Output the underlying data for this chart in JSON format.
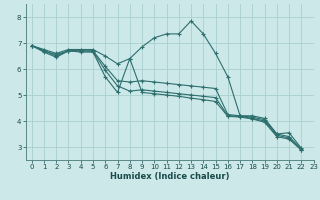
{
  "xlabel": "Humidex (Indice chaleur)",
  "bg_color": "#cce8e8",
  "grid_color": "#aacfcf",
  "line_color": "#2d6e6e",
  "xlim": [
    -0.5,
    23
  ],
  "ylim": [
    2.5,
    8.5
  ],
  "xticks": [
    0,
    1,
    2,
    3,
    4,
    5,
    6,
    7,
    8,
    9,
    10,
    11,
    12,
    13,
    14,
    15,
    16,
    17,
    18,
    19,
    20,
    21,
    22,
    23
  ],
  "yticks": [
    3,
    4,
    5,
    6,
    7,
    8
  ],
  "series": [
    {
      "x": [
        0,
        1,
        2,
        3,
        4,
        5,
        6,
        7,
        8,
        9,
        10,
        11,
        12,
        13,
        14,
        15,
        16,
        17,
        18,
        19,
        20,
        21,
        22
      ],
      "y": [
        6.9,
        6.75,
        6.6,
        6.75,
        6.75,
        6.75,
        6.5,
        6.2,
        6.4,
        6.85,
        7.2,
        7.35,
        7.35,
        7.85,
        7.35,
        6.6,
        5.7,
        4.2,
        4.2,
        4.1,
        3.5,
        3.55,
        2.95
      ]
    },
    {
      "x": [
        0,
        1,
        2,
        3,
        4,
        5,
        6,
        7,
        8,
        9,
        10,
        11,
        12,
        13,
        14,
        15,
        16,
        17,
        18,
        19,
        20,
        21,
        22
      ],
      "y": [
        6.9,
        6.7,
        6.55,
        6.7,
        6.7,
        6.7,
        6.1,
        5.55,
        5.5,
        5.55,
        5.5,
        5.45,
        5.4,
        5.35,
        5.3,
        5.25,
        4.25,
        4.2,
        4.15,
        4.05,
        3.5,
        3.4,
        2.92
      ]
    },
    {
      "x": [
        0,
        1,
        2,
        3,
        4,
        5,
        6,
        7,
        8,
        9,
        10,
        11,
        12,
        13,
        14,
        15,
        16,
        17,
        18,
        19,
        20,
        21,
        22
      ],
      "y": [
        6.9,
        6.7,
        6.5,
        6.7,
        6.7,
        6.68,
        5.95,
        5.35,
        5.15,
        5.2,
        5.15,
        5.1,
        5.05,
        5.0,
        4.95,
        4.9,
        4.2,
        4.18,
        4.1,
        4.0,
        3.45,
        3.35,
        2.9
      ]
    },
    {
      "x": [
        0,
        1,
        2,
        3,
        4,
        5,
        6,
        7,
        8,
        9,
        10,
        11,
        12,
        13,
        14,
        15,
        16,
        17,
        18,
        19,
        20,
        21,
        22
      ],
      "y": [
        6.9,
        6.65,
        6.45,
        6.7,
        6.65,
        6.65,
        5.7,
        5.1,
        6.4,
        5.1,
        5.05,
        5.0,
        4.95,
        4.88,
        4.82,
        4.75,
        4.18,
        4.15,
        4.08,
        3.95,
        3.4,
        3.3,
        2.88
      ]
    }
  ]
}
